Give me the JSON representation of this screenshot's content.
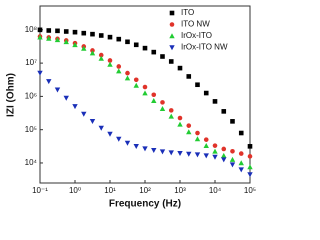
{
  "chart_data": {
    "type": "scatter",
    "xlabel": "Frequency (Hz)",
    "ylabel": "IZI (Ohm)",
    "log_x": true,
    "log_y": true,
    "legend": "upper right",
    "xlim": [
      0.1,
      100000
    ],
    "ylim": [
      2500,
      520000000
    ],
    "xticks": [
      {
        "value": 0.1,
        "label": "10⁻¹"
      },
      {
        "value": 1,
        "label": "10⁰"
      },
      {
        "value": 10,
        "label": "10¹"
      },
      {
        "value": 100,
        "label": "10²"
      },
      {
        "value": 1000,
        "label": "10³"
      },
      {
        "value": 10000,
        "label": "10⁴"
      },
      {
        "value": 100000,
        "label": "10⁵"
      }
    ],
    "yticks": [
      {
        "value": 10000,
        "label": "10⁴"
      },
      {
        "value": 100000,
        "label": "10⁵"
      },
      {
        "value": 1000000,
        "label": "10⁶"
      },
      {
        "value": 10000000,
        "label": "10⁷"
      },
      {
        "value": 100000000,
        "label": "10⁸"
      }
    ],
    "x": [
      0.1,
      0.178,
      0.316,
      0.562,
      1,
      1.78,
      3.16,
      5.62,
      10,
      17.8,
      31.6,
      56.2,
      100,
      178,
      316,
      562,
      1000,
      1780,
      3160,
      5620,
      10000,
      17800,
      31600,
      56200,
      100000
    ],
    "series": [
      {
        "name": "ITO",
        "color": "#000000",
        "marker": "square",
        "values": [
          100000000.0,
          95500000.0,
          93300000.0,
          89100000.0,
          85100000.0,
          79400000.0,
          74100000.0,
          67600000.0,
          60300000.0,
          52500000.0,
          43700000.0,
          35500000.0,
          28200000.0,
          21400000.0,
          15800000.0,
          11200000.0,
          7080000.0,
          3980000.0,
          2240000.0,
          1260000.0,
          708000.0,
          355000.0,
          178000.0,
          79400.0,
          31600.0
        ]
      },
      {
        "name": "ITO NW",
        "color": "#e0332a",
        "marker": "circle",
        "values": [
          63100000.0,
          58900000.0,
          53700000.0,
          47900000.0,
          39800000.0,
          31600000.0,
          24000000.0,
          17400000.0,
          12000000.0,
          7940000.0,
          5010000.0,
          3160000.0,
          1910000.0,
          1120000.0,
          661000.0,
          380000.0,
          224000.0,
          132000.0,
          79400.0,
          50100.0,
          33100.0,
          26300.0,
          22400.0,
          19100.0,
          15800.0
        ]
      },
      {
        "name": "IrOx-ITO",
        "color": "#22cc33",
        "marker": "triangle-up",
        "values": [
          60300000.0,
          55000000.0,
          50100000.0,
          43700000.0,
          35500000.0,
          27500000.0,
          20000000.0,
          13800000.0,
          9120000.0,
          5750000.0,
          3550000.0,
          2140000.0,
          1260000.0,
          741000.0,
          427000.0,
          251000.0,
          145000.0,
          85100.0,
          52500.0,
          33100.0,
          22400.0,
          16600.0,
          12600.0,
          10000.0,
          7590.0
        ]
      },
      {
        "name": "IrOx-ITO NW",
        "color": "#1a2fb8",
        "marker": "triangle-down",
        "values": [
          5010000.0,
          2820000.0,
          1580000.0,
          891000.0,
          501000.0,
          295000.0,
          178000.0,
          112000.0,
          74100.0,
          52500.0,
          39800.0,
          31600.0,
          26900.0,
          24000.0,
          21900.0,
          20400.0,
          19500.0,
          18600.0,
          17800.0,
          16600.0,
          15100.0,
          12600.0,
          8910.0,
          6310.0,
          4470.0
        ]
      }
    ]
  }
}
